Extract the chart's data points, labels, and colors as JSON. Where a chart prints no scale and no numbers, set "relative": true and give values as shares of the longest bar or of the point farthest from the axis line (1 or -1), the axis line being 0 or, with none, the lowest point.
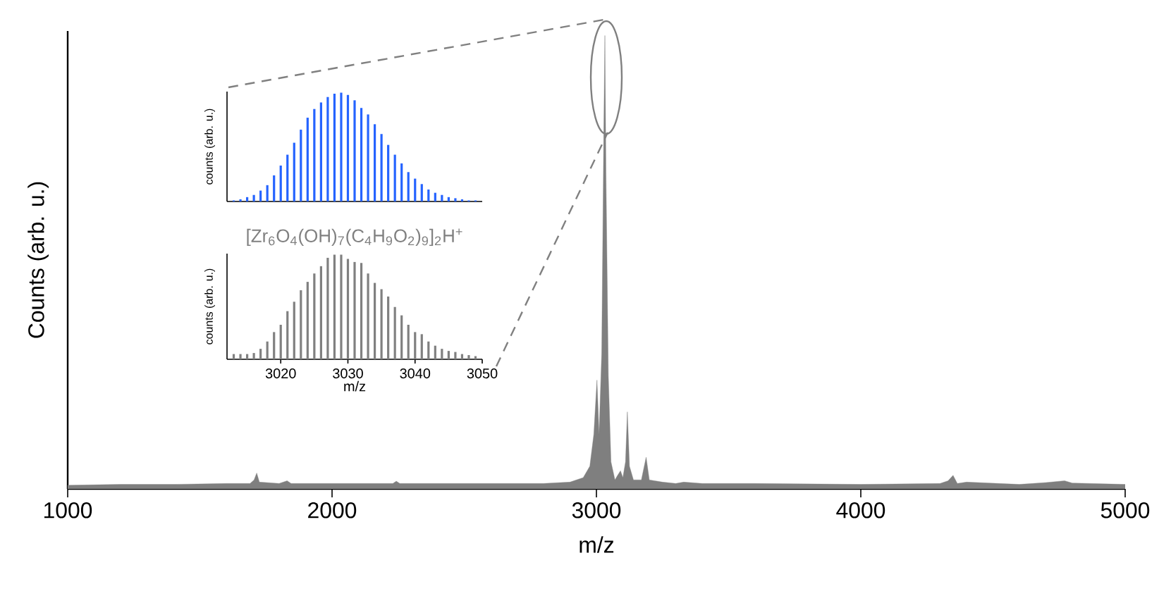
{
  "chart_data": [
    {
      "type": "area",
      "xlabel": "m/z",
      "ylabel": "Counts (arb. u.)",
      "relative": true,
      "color": "#7f7f7f",
      "xlim": [
        1000,
        5000
      ],
      "xticks": [
        1000,
        2000,
        3000,
        4000,
        5000
      ],
      "x": [
        1000,
        1200,
        1400,
        1600,
        1690,
        1705,
        1715,
        1725,
        1800,
        1830,
        1845,
        2000,
        2230,
        2243,
        2256,
        2500,
        2800,
        2900,
        2950,
        2975,
        2990,
        3002,
        3010,
        3020,
        3028,
        3032,
        3036,
        3045,
        3055,
        3070,
        3080,
        3091,
        3100,
        3110,
        3117,
        3125,
        3140,
        3158,
        3170,
        3188,
        3200,
        3250,
        3300,
        3330,
        3400,
        3600,
        4000,
        4300,
        4330,
        4349,
        4365,
        4400,
        4600,
        4700,
        4771,
        4800,
        5000
      ],
      "values": [
        0.008,
        0.01,
        0.01,
        0.012,
        0.012,
        0.02,
        0.035,
        0.015,
        0.012,
        0.018,
        0.012,
        0.012,
        0.012,
        0.017,
        0.012,
        0.012,
        0.012,
        0.015,
        0.025,
        0.05,
        0.12,
        0.24,
        0.12,
        0.3,
        0.8,
        1.0,
        0.7,
        0.25,
        0.06,
        0.02,
        0.03,
        0.04,
        0.025,
        0.06,
        0.17,
        0.05,
        0.02,
        0.02,
        0.02,
        0.07,
        0.02,
        0.015,
        0.012,
        0.015,
        0.012,
        0.012,
        0.01,
        0.012,
        0.018,
        0.03,
        0.012,
        0.015,
        0.01,
        0.014,
        0.018,
        0.013,
        0.01
      ]
    },
    {
      "type": "bar",
      "ylabel": "counts (arb. u.)",
      "relative": true,
      "color": "#2563ff",
      "xlim": [
        3012,
        3050
      ],
      "tick_labels": false,
      "x": [
        3013,
        3014,
        3015,
        3016,
        3017,
        3018,
        3019,
        3020,
        3021,
        3022,
        3023,
        3024,
        3025,
        3026,
        3027,
        3028,
        3029,
        3030,
        3031,
        3032,
        3033,
        3034,
        3035,
        3036,
        3037,
        3038,
        3039,
        3040,
        3041,
        3042,
        3043,
        3044,
        3045,
        3046,
        3047,
        3048,
        3049
      ],
      "values": [
        0.01,
        0.02,
        0.04,
        0.06,
        0.1,
        0.15,
        0.24,
        0.33,
        0.43,
        0.54,
        0.66,
        0.77,
        0.85,
        0.91,
        0.96,
        0.99,
        1.0,
        0.98,
        0.93,
        0.86,
        0.8,
        0.71,
        0.62,
        0.52,
        0.43,
        0.35,
        0.27,
        0.21,
        0.16,
        0.11,
        0.08,
        0.06,
        0.04,
        0.03,
        0.02,
        0.01,
        0.01
      ]
    },
    {
      "type": "bar",
      "title": "[Zr$_{6}$O$_{4}$(OH)$_{7}$(C$_{4}$H$_{9}$O$_{2}$)$_{9}$]$_{2}$H$^{+}$",
      "xlabel": "m/z",
      "ylabel": "counts (arb. u.)",
      "relative": true,
      "color": "#808080",
      "xlim": [
        3012,
        3050
      ],
      "xticks": [
        3020,
        3030,
        3040,
        3050
      ],
      "tick_labels": "x",
      "x": [
        3013,
        3014,
        3015,
        3016,
        3017,
        3018,
        3019,
        3020,
        3021,
        3022,
        3023,
        3024,
        3025,
        3026,
        3027,
        3028,
        3029,
        3030,
        3031,
        3032,
        3033,
        3034,
        3035,
        3036,
        3037,
        3038,
        3039,
        3040,
        3041,
        3042,
        3043,
        3044,
        3045,
        3046,
        3047,
        3048,
        3049
      ],
      "values": [
        0.05,
        0.05,
        0.05,
        0.06,
        0.1,
        0.17,
        0.26,
        0.33,
        0.46,
        0.55,
        0.66,
        0.74,
        0.82,
        0.89,
        0.97,
        1.0,
        1.0,
        0.96,
        0.93,
        0.92,
        0.82,
        0.73,
        0.67,
        0.6,
        0.5,
        0.42,
        0.33,
        0.26,
        0.24,
        0.17,
        0.13,
        0.1,
        0.08,
        0.07,
        0.05,
        0.04,
        0.03
      ]
    }
  ]
}
